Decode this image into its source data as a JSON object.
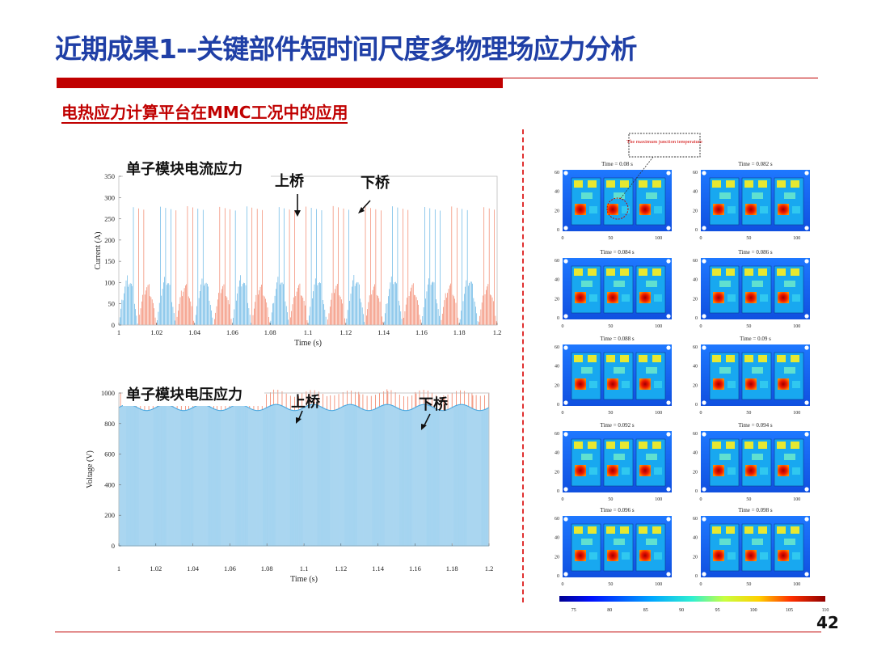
{
  "slide": {
    "title": "近期成果1--关键部件短时间尺度多物理场应力分析",
    "subtitle": "电热应力计算平台在MMC工况中的应用",
    "page_number": "42"
  },
  "colors": {
    "title": "#1f3fa6",
    "accent_red": "#c00000",
    "upper_bridge": "#f07050",
    "lower_bridge": "#4aa8e0"
  },
  "chart_data": [
    {
      "type": "line",
      "title": "单子模块电流应力",
      "xlabel": "Time (s)",
      "ylabel": "Current (A)",
      "xlim": [
        1,
        1.2
      ],
      "ylim": [
        0,
        350
      ],
      "xticks": [
        "1",
        "1.02",
        "1.04",
        "1.06",
        "1.08",
        "1.1",
        "1.12",
        "1.14",
        "1.16",
        "1.18",
        "1.2"
      ],
      "yticks": [
        "0",
        "50",
        "100",
        "150",
        "200",
        "250",
        "300",
        "350"
      ],
      "annotations": [
        "上桥",
        "下桥"
      ],
      "grid": false,
      "series": [
        {
          "color": "#f07050",
          "description": "switching current pulses up to about 260 A with half-wave envelope near 100 A"
        },
        {
          "color": "#4aa8e0",
          "description": "switching current pulses up to about 280 A with half-wave envelope near 120 A"
        }
      ]
    },
    {
      "type": "line",
      "title": "单子模块电压应力",
      "xlabel": "Time (s)",
      "ylabel": "Voltage (V)",
      "xlim": [
        1,
        1.2
      ],
      "ylim": [
        0,
        1000
      ],
      "xticks": [
        "1",
        "1.02",
        "1.04",
        "1.06",
        "1.08",
        "1.1",
        "1.12",
        "1.14",
        "1.16",
        "1.18",
        "1.2"
      ],
      "yticks": [
        "0",
        "200",
        "400",
        "600",
        "800",
        "1000"
      ],
      "annotations": [
        "上桥",
        "下桥"
      ],
      "grid": false,
      "series": [
        {
          "color": "#4aa8e0",
          "description": "switching voltage 0 or about 900 V with capacitor ripple about ±20 V"
        },
        {
          "color": "#f07050",
          "description": "switching voltage spikes to about 1000 V"
        }
      ]
    },
    {
      "type": "heatmap",
      "callout": "The maximum junction temperature",
      "panels": [
        "Time = 0.08 s",
        "Time = 0.082 s",
        "Time = 0.084 s",
        "Time = 0.086 s",
        "Time = 0.088 s",
        "Time = 0.09 s",
        "Time = 0.092 s",
        "Time = 0.094 s",
        "Time = 0.096 s",
        "Time = 0.098 s"
      ],
      "x_ticks": [
        "0",
        "50",
        "100"
      ],
      "y_ticks": [
        "0",
        "20",
        "40",
        "60"
      ],
      "colorbar_ticks": [
        "75",
        "80",
        "85",
        "90",
        "95",
        "100",
        "105",
        "110"
      ],
      "colorbar_range": [
        73,
        110
      ]
    }
  ]
}
